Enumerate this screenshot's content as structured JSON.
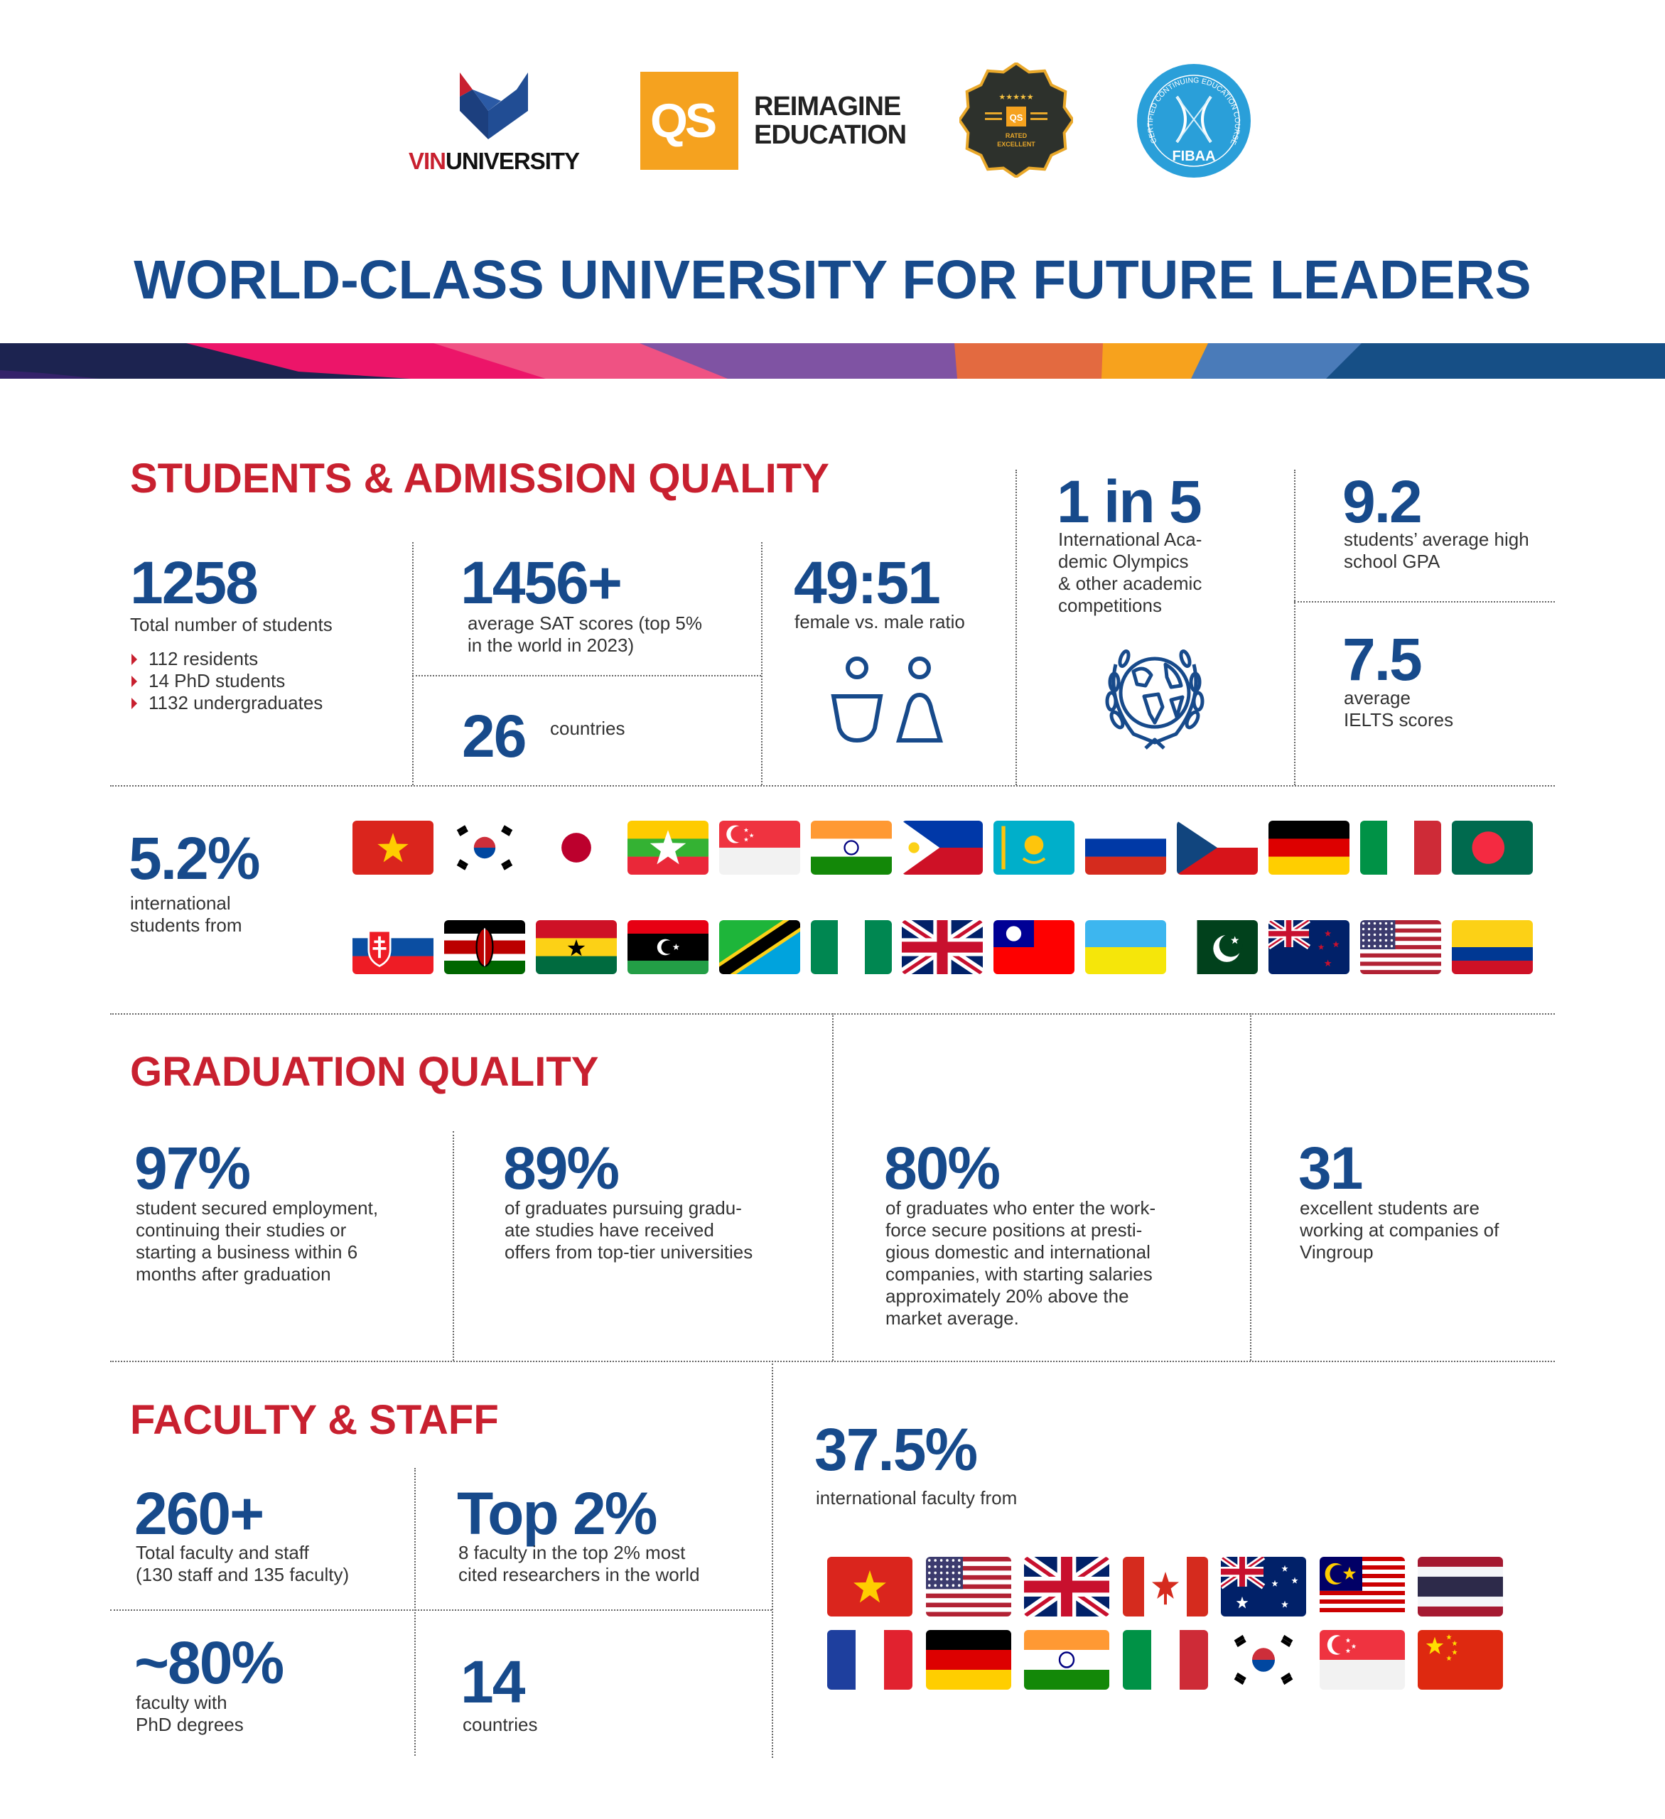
{
  "logos": {
    "vinuni": {
      "prefix": "VIN",
      "rest": "UNIVERSITY"
    },
    "qs": {
      "mark": "QS",
      "line1": "REIMAGINE",
      "line2": "EDUCATION"
    },
    "qs_badge": {
      "stars": "★★★★★",
      "mark": "QS",
      "line1": "RATED",
      "line2": "EXCELLENT"
    },
    "fibaa": {
      "arc": "CERTIFIED CONTINUING EDUCATION COURSE",
      "name": "FIBAA"
    }
  },
  "title": "WORLD-CLASS UNIVERSITY FOR FUTURE LEADERS",
  "colors": {
    "navy": "#174a8b",
    "red": "#c8202f",
    "text": "#333333",
    "qs_orange": "#f5a21f",
    "fibaa_blue": "#2a9fd9"
  },
  "students": {
    "heading": "STUDENTS & ADMISSION QUALITY",
    "total": {
      "value": "1258",
      "label": "Total number of students",
      "bullets": [
        "112 residents",
        "14 PhD students",
        "1132 undergraduates"
      ]
    },
    "sat": {
      "value": "1456+",
      "label_lines": [
        "average SAT scores (top 5%",
        "in the world in 2023)"
      ]
    },
    "countries": {
      "value": "26",
      "label": "countries"
    },
    "ratio": {
      "value": "49:51",
      "label": "female vs. male ratio",
      "icon": "female-male-icon"
    },
    "olympics": {
      "value": "1 in 5",
      "label_lines": [
        "International Aca-",
        "demic Olympics",
        "& other academic",
        "competitions"
      ],
      "icon": "globe-laurel-icon"
    },
    "gpa": {
      "value": "9.2",
      "label_lines": [
        "students’ average high",
        "school GPA"
      ]
    },
    "ielts": {
      "value": "7.5",
      "label_lines": [
        "average",
        "IELTS scores"
      ]
    },
    "international": {
      "value": "5.2%",
      "label_lines": [
        "international",
        "students from"
      ]
    },
    "flags_row1": [
      "vn",
      "kr",
      "jp",
      "mm",
      "sg",
      "in",
      "ph",
      "kz",
      "ru",
      "cz",
      "de",
      "it",
      "bd"
    ],
    "flags_row2": [
      "sk",
      "ke",
      "gh",
      "ly",
      "tz",
      "ng",
      "gb",
      "tw",
      "ua",
      "pk",
      "nz",
      "us",
      "co"
    ]
  },
  "graduation": {
    "heading": "GRADUATION QUALITY",
    "stats": [
      {
        "value": "97%",
        "label_lines": [
          "student secured employment,",
          "continuing their studies or",
          "starting a business within 6",
          "months after graduation"
        ]
      },
      {
        "value": "89%",
        "label_lines": [
          "of graduates pursuing gradu-",
          "ate studies have received",
          "offers from top-tier universities"
        ]
      },
      {
        "value": "80%",
        "label_lines": [
          "of graduates who enter the work-",
          "force secure positions at presti-",
          "gious domestic and international",
          "companies, with starting salaries",
          "approximately 20% above the",
          "market average."
        ]
      },
      {
        "value": "31",
        "label_lines": [
          "excellent students are",
          "working at companies of",
          "Vingroup"
        ]
      }
    ]
  },
  "faculty": {
    "heading": "FACULTY & STAFF",
    "total": {
      "value": "260+",
      "label_lines": [
        "Total faculty and staff",
        "(130 staff and 135 faculty)"
      ]
    },
    "top": {
      "value": "Top 2%",
      "label_lines": [
        "8 faculty in the top 2% most",
        "cited researchers in the world"
      ]
    },
    "phd": {
      "value": "~80%",
      "label_lines": [
        "faculty with",
        "PhD degrees"
      ]
    },
    "countries": {
      "value": "14",
      "label": "countries"
    },
    "international": {
      "value": "37.5%",
      "label": "international faculty from"
    },
    "flags_row1": [
      "vn",
      "us",
      "gb",
      "ca",
      "au",
      "my",
      "th"
    ],
    "flags_row2": [
      "fr",
      "de",
      "in",
      "it",
      "kr",
      "sg",
      "cn"
    ]
  }
}
